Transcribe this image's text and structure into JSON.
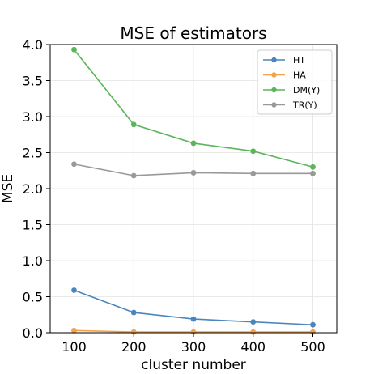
{
  "chart_data": {
    "type": "line",
    "title": "MSE of estimators",
    "xlabel": "cluster number",
    "ylabel": "MSE",
    "x": [
      100,
      200,
      300,
      400,
      500
    ],
    "xlim": [
      60,
      540
    ],
    "ylim": [
      0.0,
      4.0
    ],
    "xticks": [
      100,
      200,
      300,
      400,
      500
    ],
    "yticks": [
      "0.0",
      "0.5",
      "1.0",
      "1.5",
      "2.0",
      "2.5",
      "3.0",
      "3.5",
      "4.0"
    ],
    "grid": true,
    "legend_position": "top-right",
    "series": [
      {
        "name": "HT",
        "color": "#4a86bd",
        "values": [
          0.59,
          0.28,
          0.19,
          0.15,
          0.11
        ]
      },
      {
        "name": "HA",
        "color": "#f5a04a",
        "values": [
          0.03,
          0.01,
          0.01,
          0.01,
          0.01
        ]
      },
      {
        "name": "DM(Y)",
        "color": "#5bb55b",
        "values": [
          3.93,
          2.89,
          2.63,
          2.52,
          2.3
        ]
      },
      {
        "name": "TR(Y)",
        "color": "#999999",
        "values": [
          2.34,
          2.18,
          2.22,
          2.21,
          2.21
        ]
      }
    ]
  }
}
